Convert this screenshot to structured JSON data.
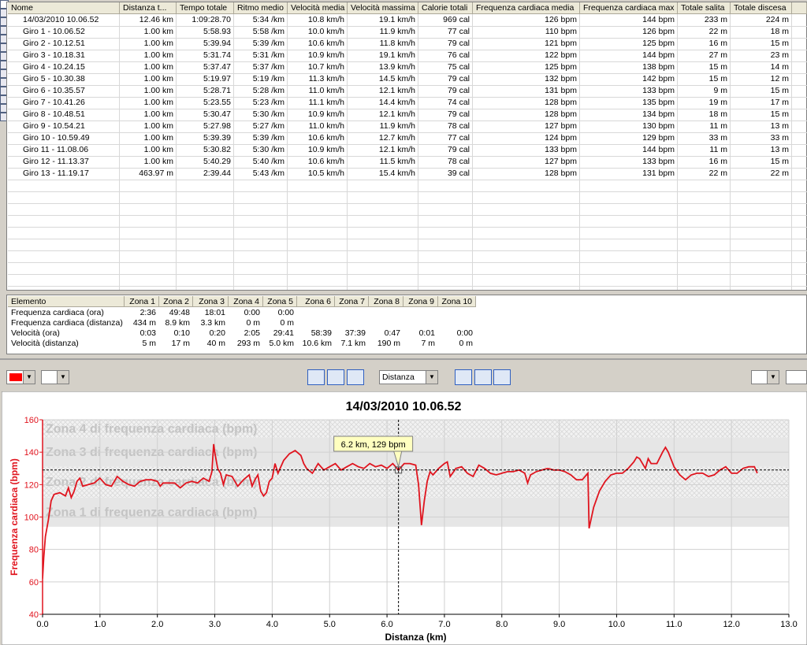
{
  "laps_table": {
    "headers": [
      "Nome",
      "Distanza t...",
      "Tempo totale",
      "Ritmo medio",
      "Velocità media",
      "Velocità massima",
      "Calorie totali",
      "Frequenza cardiaca media",
      "Frequenza cardiaca max",
      "Totale salita",
      "Totale discesa"
    ],
    "rows": [
      [
        "14/03/2010 10.06.52",
        "12.46 km",
        "1:09:28.70",
        "5:34 /km",
        "10.8 km/h",
        "19.1 km/h",
        "969 cal",
        "126 bpm",
        "144 bpm",
        "233 m",
        "224 m"
      ],
      [
        "Giro 1 - 10.06.52",
        "1.00 km",
        "5:58.93",
        "5:58 /km",
        "10.0 km/h",
        "11.9 km/h",
        "77 cal",
        "110 bpm",
        "126 bpm",
        "22 m",
        "18 m"
      ],
      [
        "Giro 2 - 10.12.51",
        "1.00 km",
        "5:39.94",
        "5:39 /km",
        "10.6 km/h",
        "11.8 km/h",
        "79 cal",
        "121 bpm",
        "125 bpm",
        "16 m",
        "15 m"
      ],
      [
        "Giro 3 - 10.18.31",
        "1.00 km",
        "5:31.74",
        "5:31 /km",
        "10.9 km/h",
        "19.1 km/h",
        "76 cal",
        "122 bpm",
        "144 bpm",
        "27 m",
        "23 m"
      ],
      [
        "Giro 4 - 10.24.15",
        "1.00 km",
        "5:37.47",
        "5:37 /km",
        "10.7 km/h",
        "13.9 km/h",
        "75 cal",
        "125 bpm",
        "138 bpm",
        "15 m",
        "14 m"
      ],
      [
        "Giro 5 - 10.30.38",
        "1.00 km",
        "5:19.97",
        "5:19 /km",
        "11.3 km/h",
        "14.5 km/h",
        "79 cal",
        "132 bpm",
        "142 bpm",
        "15 m",
        "12 m"
      ],
      [
        "Giro 6 - 10.35.57",
        "1.00 km",
        "5:28.71",
        "5:28 /km",
        "11.0 km/h",
        "12.1 km/h",
        "79 cal",
        "131 bpm",
        "133 bpm",
        "9 m",
        "15 m"
      ],
      [
        "Giro 7 - 10.41.26",
        "1.00 km",
        "5:23.55",
        "5:23 /km",
        "11.1 km/h",
        "14.4 km/h",
        "74 cal",
        "128 bpm",
        "135 bpm",
        "19 m",
        "17 m"
      ],
      [
        "Giro 8 - 10.48.51",
        "1.00 km",
        "5:30.47",
        "5:30 /km",
        "10.9 km/h",
        "12.1 km/h",
        "79 cal",
        "128 bpm",
        "134 bpm",
        "18 m",
        "15 m"
      ],
      [
        "Giro 9 - 10.54.21",
        "1.00 km",
        "5:27.98",
        "5:27 /km",
        "11.0 km/h",
        "11.9 km/h",
        "78 cal",
        "127 bpm",
        "130 bpm",
        "11 m",
        "13 m"
      ],
      [
        "Giro 10 - 10.59.49",
        "1.00 km",
        "5:39.39",
        "5:39 /km",
        "10.6 km/h",
        "12.7 km/h",
        "77 cal",
        "124 bpm",
        "129 bpm",
        "33 m",
        "33 m"
      ],
      [
        "Giro 11 - 11.08.06",
        "1.00 km",
        "5:30.82",
        "5:30 /km",
        "10.9 km/h",
        "12.1 km/h",
        "79 cal",
        "133 bpm",
        "144 bpm",
        "11 m",
        "13 m"
      ],
      [
        "Giro 12 - 11.13.37",
        "1.00 km",
        "5:40.29",
        "5:40 /km",
        "10.6 km/h",
        "11.5 km/h",
        "78 cal",
        "127 bpm",
        "133 bpm",
        "16 m",
        "15 m"
      ],
      [
        "Giro 13 - 11.19.17",
        "463.97 m",
        "2:39.44",
        "5:43 /km",
        "10.5 km/h",
        "15.4 km/h",
        "39 cal",
        "128 bpm",
        "131 bpm",
        "22 m",
        "22 m"
      ]
    ]
  },
  "zones_table": {
    "headers": [
      "Elemento",
      "Zona 1",
      "Zona 2",
      "Zona 3",
      "Zona 4",
      "Zona 5",
      "Zona 6",
      "Zona 7",
      "Zona 8",
      "Zona 9",
      "Zona 10"
    ],
    "rows": [
      [
        "Frequenza cardiaca (ora)",
        "2:36",
        "49:48",
        "18:01",
        "0:00",
        "0:00"
      ],
      [
        "Frequenza cardiaca (distanza)",
        "434 m",
        "8.9 km",
        "3.3 km",
        "0 m",
        "0 m"
      ],
      [
        "Velocità (ora)",
        "0:03",
        "0:10",
        "0:20",
        "2:05",
        "29:41",
        "58:39",
        "37:39",
        "0:47",
        "0:01",
        "0:00"
      ],
      [
        "Velocità (distanza)",
        "5 m",
        "17 m",
        "40 m",
        "293 m",
        "5.0 km",
        "10.6 km",
        "7.1 km",
        "190 m",
        "7 m",
        "0 m"
      ]
    ]
  },
  "toolbar": {
    "axis_select": "Distanza"
  },
  "chart_data": {
    "type": "line",
    "title": "14/03/2010 10.06.52",
    "x_label": "Distanza (km)",
    "y_label": "Frequenza cardiaca (bpm)",
    "color": "#e0141e",
    "grid": true,
    "xlim": [
      0,
      13
    ],
    "ylim": [
      40,
      160
    ],
    "xticks": [
      {
        "value": 0,
        "label": "0.0"
      },
      {
        "value": 1,
        "label": "1.0"
      },
      {
        "value": 2,
        "label": "2.0"
      },
      {
        "value": 3,
        "label": "3.0"
      },
      {
        "value": 4,
        "label": "4.0"
      },
      {
        "value": 5,
        "label": "5.0"
      },
      {
        "value": 6,
        "label": "6.0"
      },
      {
        "value": 7,
        "label": "7.0"
      },
      {
        "value": 8,
        "label": "8.0"
      },
      {
        "value": 9,
        "label": "9.0"
      },
      {
        "value": 10,
        "label": "10.0"
      },
      {
        "value": 11,
        "label": "11.0"
      },
      {
        "value": 12,
        "label": "12.0"
      },
      {
        "value": 13,
        "label": "13.0"
      }
    ],
    "yticks": [
      40,
      60,
      80,
      100,
      120,
      140,
      160
    ],
    "bands": [
      {
        "label": "Zona 1 di frequenza cardiaca (bpm)",
        "range": [
          94,
          112
        ],
        "pattern": "solid"
      },
      {
        "label": "Zona 2 di frequenza cardiaca (bpm)",
        "range": [
          112,
          131
        ],
        "pattern": "hatch"
      },
      {
        "label": "Zona 3 di frequenza cardiaca (bpm)",
        "range": [
          131,
          149
        ],
        "pattern": "solid"
      },
      {
        "label": "Zona 4 di frequenza cardiaca (bpm)",
        "range": [
          149,
          160
        ],
        "pattern": "hatch"
      }
    ],
    "cursor": {
      "x": 6.2,
      "y": 129,
      "label": "6.2 km, 129 bpm"
    },
    "x": [
      0,
      0.02,
      0.05,
      0.1,
      0.15,
      0.2,
      0.3,
      0.4,
      0.45,
      0.5,
      0.55,
      0.6,
      0.65,
      0.7,
      0.8,
      0.9,
      1.0,
      1.1,
      1.2,
      1.3,
      1.4,
      1.5,
      1.6,
      1.7,
      1.8,
      1.9,
      2.0,
      2.05,
      2.1,
      2.2,
      2.3,
      2.4,
      2.5,
      2.6,
      2.7,
      2.8,
      2.9,
      2.95,
      2.98,
      3.0,
      3.05,
      3.1,
      3.15,
      3.2,
      3.3,
      3.4,
      3.5,
      3.6,
      3.65,
      3.7,
      3.75,
      3.8,
      3.85,
      3.9,
      3.95,
      4.0,
      4.05,
      4.1,
      4.2,
      4.3,
      4.4,
      4.5,
      4.55,
      4.6,
      4.7,
      4.8,
      4.9,
      5.0,
      5.1,
      5.2,
      5.3,
      5.4,
      5.5,
      5.6,
      5.7,
      5.8,
      5.9,
      6.0,
      6.1,
      6.2,
      6.3,
      6.4,
      6.5,
      6.55,
      6.6,
      6.65,
      6.7,
      6.75,
      6.8,
      6.9,
      7.0,
      7.05,
      7.1,
      7.2,
      7.3,
      7.4,
      7.5,
      7.6,
      7.7,
      7.8,
      7.9,
      8.0,
      8.1,
      8.2,
      8.3,
      8.4,
      8.45,
      8.5,
      8.6,
      8.7,
      8.8,
      8.9,
      9.0,
      9.1,
      9.2,
      9.3,
      9.4,
      9.5,
      9.52,
      9.6,
      9.7,
      9.8,
      9.9,
      10.0,
      10.1,
      10.2,
      10.3,
      10.35,
      10.4,
      10.5,
      10.55,
      10.6,
      10.7,
      10.8,
      10.85,
      10.9,
      11.0,
      11.1,
      11.2,
      11.3,
      11.4,
      11.5,
      11.6,
      11.7,
      11.8,
      11.9,
      12.0,
      12.1,
      12.2,
      12.3,
      12.4,
      12.45
    ],
    "values": [
      62,
      75,
      88,
      98,
      110,
      114,
      115,
      113,
      118,
      112,
      116,
      122,
      124,
      119,
      120,
      121,
      124,
      120,
      119,
      125,
      122,
      120,
      119,
      122,
      123,
      123,
      122,
      119,
      121,
      121,
      121,
      118,
      121,
      122,
      121,
      124,
      122,
      128,
      145,
      140,
      130,
      127,
      120,
      126,
      125,
      119,
      123,
      126,
      119,
      123,
      126,
      116,
      113,
      115,
      122,
      124,
      133,
      127,
      135,
      139,
      141,
      138,
      133,
      130,
      127,
      133,
      129,
      131,
      133,
      129,
      131,
      133,
      131,
      130,
      133,
      131,
      132,
      130,
      133,
      129,
      133,
      133,
      132,
      120,
      95,
      110,
      122,
      128,
      126,
      130,
      133,
      134,
      125,
      130,
      131,
      127,
      125,
      132,
      130,
      127,
      126,
      127,
      128,
      128,
      129,
      127,
      121,
      126,
      128,
      129,
      130,
      129,
      129,
      128,
      126,
      123,
      123,
      127,
      93,
      106,
      116,
      122,
      126,
      127,
      127,
      130,
      134,
      137,
      136,
      130,
      136,
      133,
      133,
      140,
      143,
      140,
      131,
      126,
      123,
      126,
      127,
      127,
      125,
      126,
      129,
      131,
      127,
      127,
      130,
      131,
      131,
      127
    ]
  }
}
